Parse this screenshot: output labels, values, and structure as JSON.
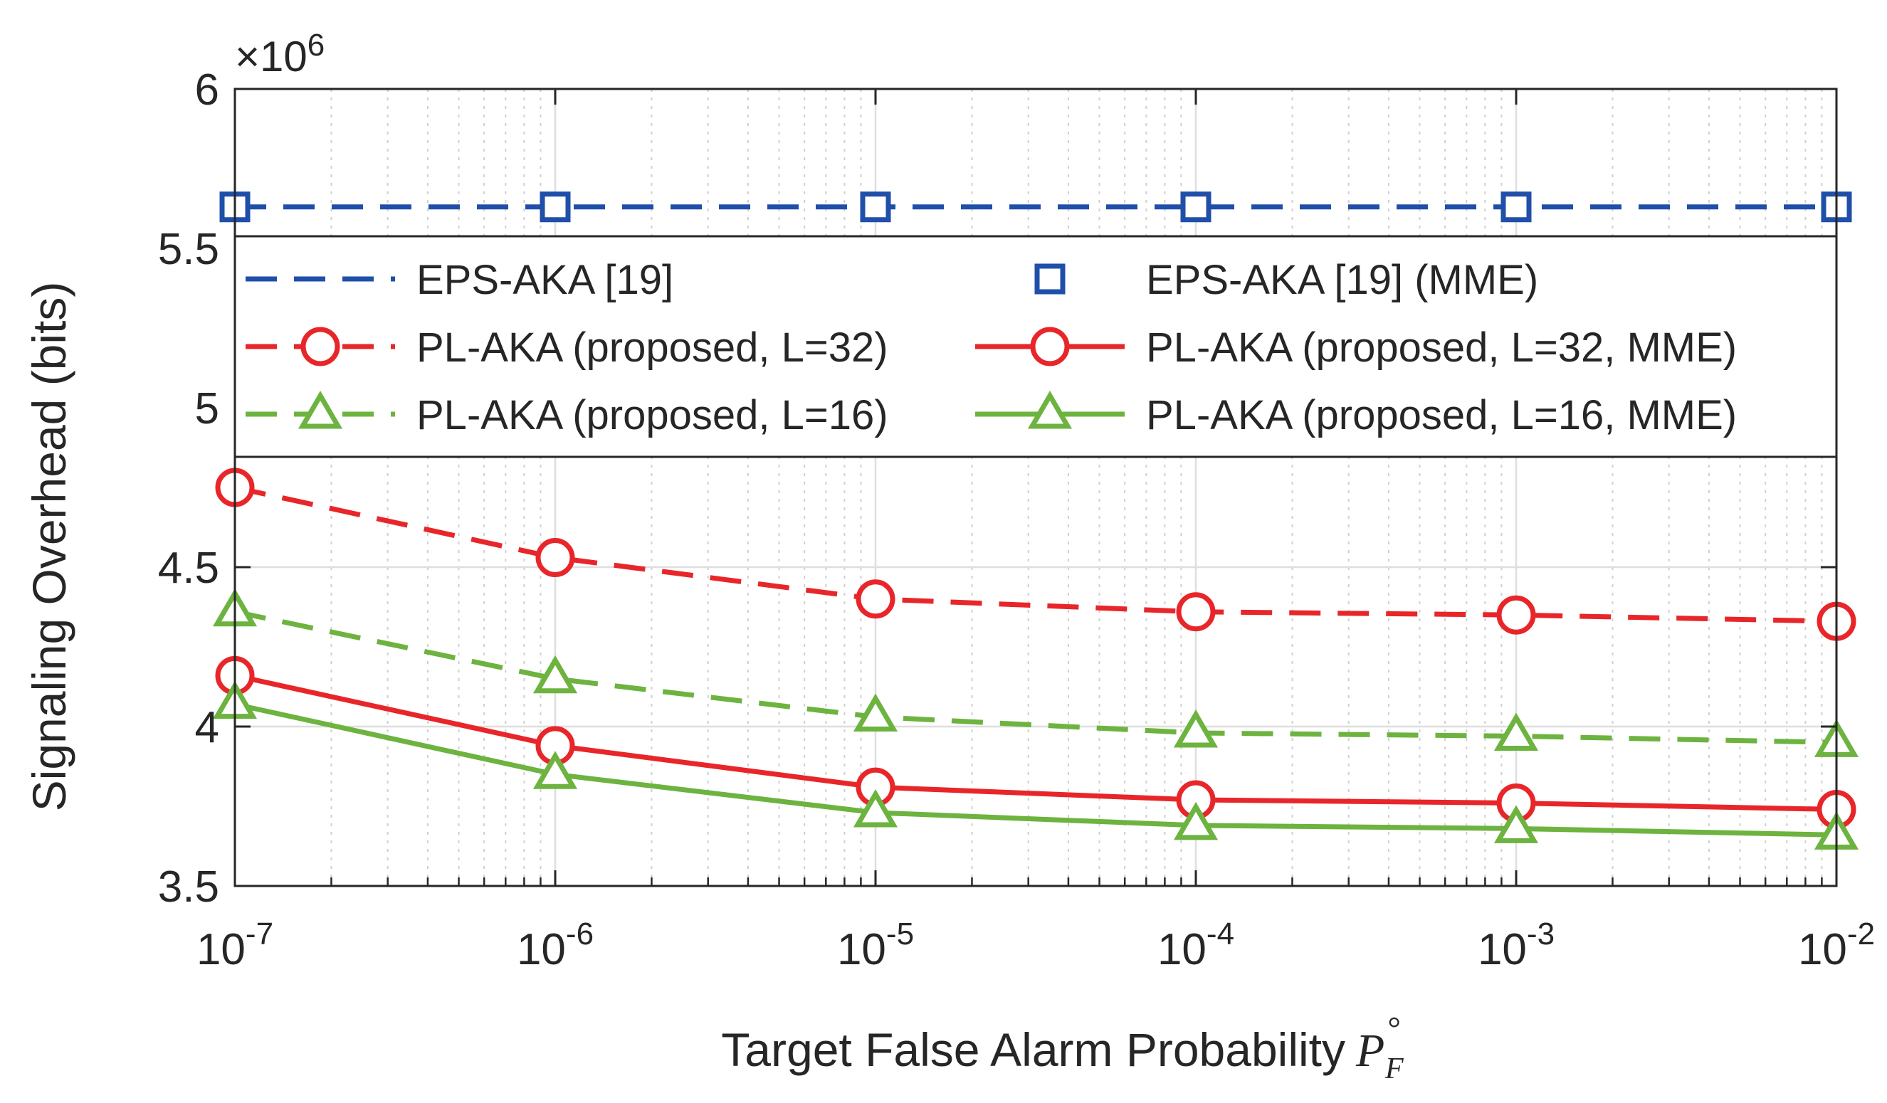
{
  "chart_data": {
    "type": "line",
    "title": "",
    "xlabel": "Target False Alarm Probability",
    "xlabel_symbol": "P",
    "xlabel_subscript": "F",
    "xlabel_superscript": "°",
    "ylabel": "Signaling Overhead (bits)",
    "xscale": "log",
    "x": [
      1e-07,
      1e-06,
      1e-05,
      0.0001,
      0.001,
      0.01
    ],
    "x_ticks": [
      {
        "base": "10",
        "exp": "-7"
      },
      {
        "base": "10",
        "exp": "-6"
      },
      {
        "base": "10",
        "exp": "-5"
      },
      {
        "base": "10",
        "exp": "-4"
      },
      {
        "base": "10",
        "exp": "-3"
      },
      {
        "base": "10",
        "exp": "-2"
      }
    ],
    "y_ticks": [
      "3.5",
      "4",
      "4.5",
      "5",
      "5.5",
      "6"
    ],
    "y_multiplier_base": "×10",
    "y_multiplier_exp": "6",
    "ylim": [
      3.5,
      6.0
    ],
    "grid": true,
    "legend_placement": "upper-middle",
    "series": [
      {
        "name": "EPS-AKA [19]",
        "color": "#1f4fa8",
        "line": "dashed",
        "marker": "none",
        "values": [
          5.63,
          5.63,
          5.63,
          5.63,
          5.63,
          5.63
        ]
      },
      {
        "name": "EPS-AKA [19] (MME)",
        "color": "#1f4fa8",
        "line": "none",
        "marker": "square",
        "values": [
          5.63,
          5.63,
          5.63,
          5.63,
          5.63,
          5.63
        ]
      },
      {
        "name": "PL-AKA (proposed, L=32)",
        "color": "#e8262a",
        "line": "dashed",
        "marker": "circle",
        "values": [
          4.75,
          4.53,
          4.4,
          4.36,
          4.35,
          4.33
        ]
      },
      {
        "name": "PL-AKA (proposed, L=32, MME)",
        "color": "#e8262a",
        "line": "solid",
        "marker": "circle",
        "values": [
          4.16,
          3.94,
          3.81,
          3.77,
          3.76,
          3.74
        ]
      },
      {
        "name": "PL-AKA (proposed, L=16)",
        "color": "#6db33f",
        "line": "dashed",
        "marker": "triangle",
        "values": [
          4.36,
          4.15,
          4.03,
          3.98,
          3.97,
          3.95
        ]
      },
      {
        "name": "PL-AKA (proposed, L=16, MME)",
        "color": "#6db33f",
        "line": "solid",
        "marker": "triangle",
        "values": [
          4.07,
          3.85,
          3.73,
          3.69,
          3.68,
          3.66
        ]
      }
    ]
  }
}
